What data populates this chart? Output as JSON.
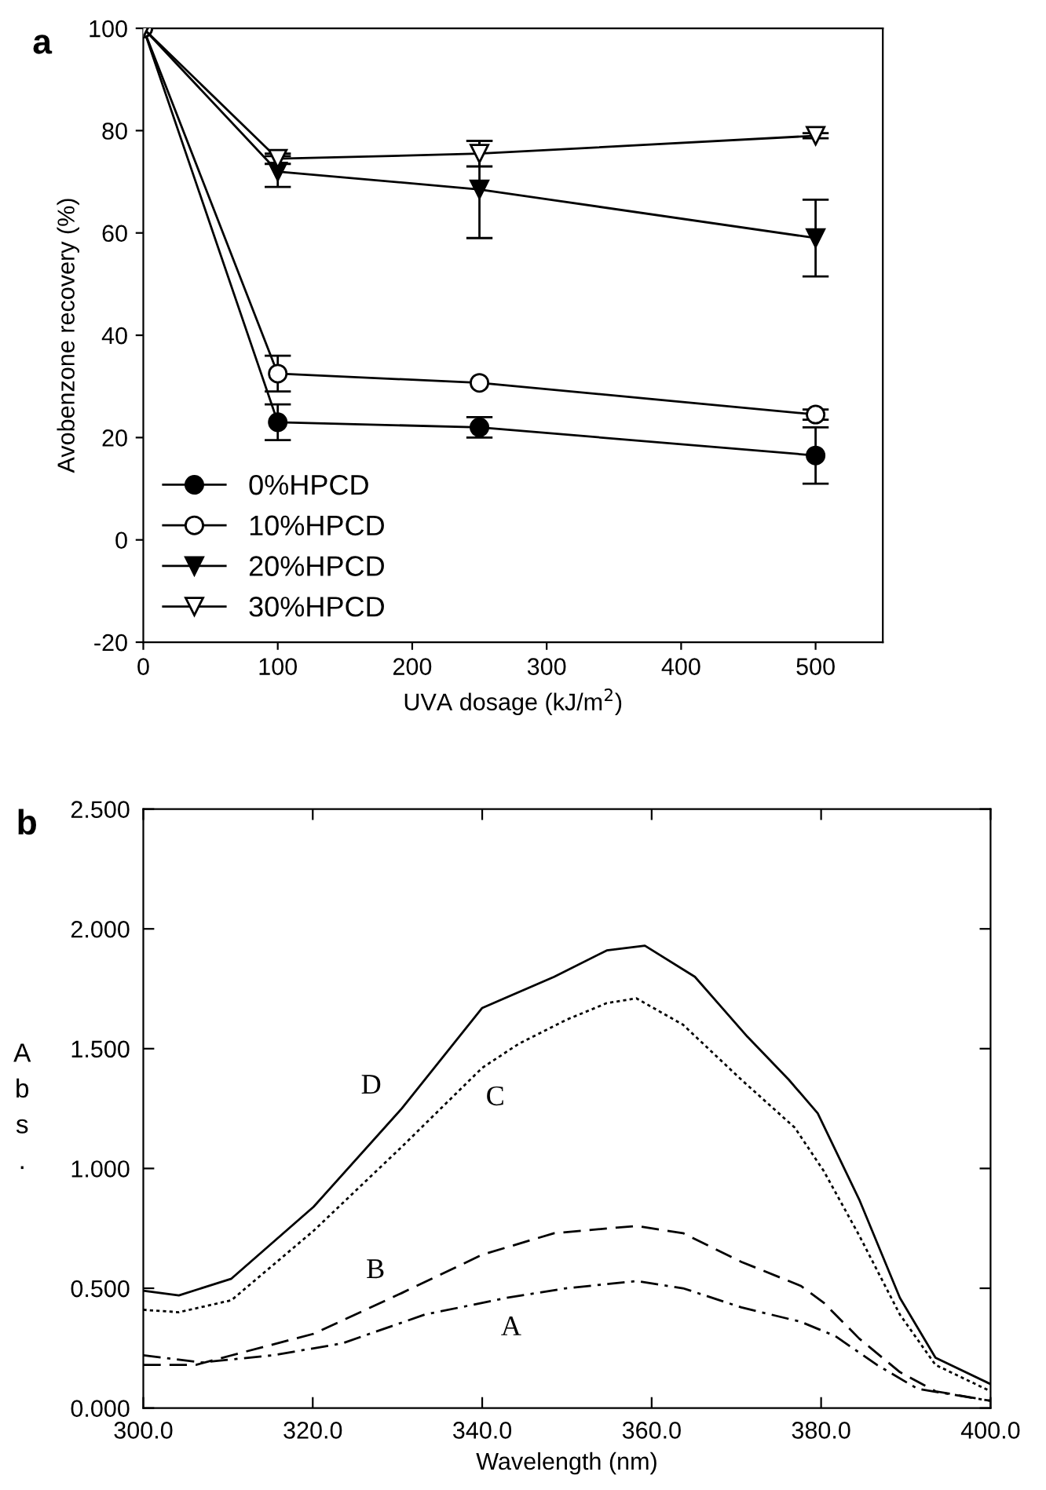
{
  "chart_data": [
    {
      "type": "line",
      "title": "a",
      "xlabel": "UVA dosage (kJ/m$^{2}$)",
      "ylabel": "Avobenzone recovery (%)",
      "x": [
        0,
        100,
        250,
        500
      ],
      "xlim": [
        0,
        550
      ],
      "ylim": [
        -20,
        100
      ],
      "xticks": [
        0,
        100,
        200,
        300,
        400,
        500
      ],
      "yticks": [
        -20,
        0,
        20,
        40,
        60,
        80,
        100
      ],
      "grid": false,
      "legend": "bottom left",
      "series": [
        {
          "name": "0%HPCD",
          "color": "#000000",
          "marker": "circle",
          "values": [
            100,
            23,
            22,
            16.5
          ],
          "errors": [
            null,
            3.5,
            2,
            5.5
          ]
        },
        {
          "name": "10%HPCD",
          "color": "#000000",
          "marker": "circle",
          "values": [
            100,
            32.5,
            30.7,
            24.5
          ],
          "errors": [
            null,
            3.5,
            null,
            1
          ]
        },
        {
          "name": "20%HPCD",
          "color": "#000000",
          "marker": "triangle",
          "values": [
            100,
            72,
            68.5,
            59
          ],
          "errors": [
            null,
            3,
            9.5,
            7.5
          ]
        },
        {
          "name": "30%HPCD",
          "color": "#000000",
          "marker": "triangle",
          "values": [
            100,
            74.5,
            75.5,
            79
          ],
          "errors": [
            null,
            1,
            2.5,
            0.5
          ]
        }
      ]
    },
    {
      "type": "line",
      "title": "b",
      "xlabel": "Wavelength (nm)",
      "ylabel": "A\nb\ns\n.",
      "xlim": [
        300,
        400
      ],
      "ylim": [
        0,
        2.5
      ],
      "xticks": [
        {
          "value": 300,
          "label": "300.0"
        },
        {
          "value": 320,
          "label": "320.0"
        },
        {
          "value": 340,
          "label": "340.0"
        },
        {
          "value": 360,
          "label": "360.0"
        },
        {
          "value": 380,
          "label": "380.0"
        },
        {
          "value": 400,
          "label": "400.0"
        }
      ],
      "yticks": [
        {
          "value": 0,
          "label": "0.000"
        },
        {
          "value": 0.5,
          "label": "0.500"
        },
        {
          "value": 1,
          "label": "1.000"
        },
        {
          "value": 1.5,
          "label": "1.500"
        },
        {
          "value": 2,
          "label": "2.000"
        },
        {
          "value": 2.5,
          "label": "2.500"
        }
      ],
      "grid": false,
      "legend": false,
      "annotations": [
        "D",
        "C",
        "B",
        "A"
      ],
      "series": [
        {
          "color": "#000000",
          "line_style": "solid",
          "x": [
            300,
            304.2,
            310.4,
            320.1,
            330.5,
            340,
            348.5,
            354.7,
            359.2,
            365.1,
            371.3,
            376.2,
            379.6,
            384.5,
            389.3,
            393.5,
            400
          ],
          "values": [
            0.49,
            0.47,
            0.54,
            0.84,
            1.25,
            1.67,
            1.8,
            1.91,
            1.93,
            1.8,
            1.55,
            1.37,
            1.23,
            0.87,
            0.46,
            0.21,
            0.1
          ]
        },
        {
          "color": "#000000",
          "line_style": "dotted",
          "x": [
            300,
            304.2,
            310.4,
            320.1,
            330.5,
            340,
            344.3,
            349.9,
            354.7,
            358.2,
            363.7,
            370.6,
            376.9,
            380.3,
            384.5,
            389.3,
            393.5,
            400
          ],
          "values": [
            0.41,
            0.4,
            0.45,
            0.74,
            1.09,
            1.42,
            1.52,
            1.62,
            1.69,
            1.71,
            1.6,
            1.37,
            1.17,
            0.99,
            0.72,
            0.39,
            0.18,
            0.07
          ]
        },
        {
          "color": "#000000",
          "line_style": "dashed",
          "x": [
            300,
            306.2,
            310.4,
            320.1,
            330.5,
            340,
            348.5,
            358.2,
            363.7,
            370.6,
            377.6,
            380.3,
            384.5,
            389.3,
            393.5,
            400
          ],
          "values": [
            0.18,
            0.18,
            0.22,
            0.31,
            0.48,
            0.64,
            0.73,
            0.76,
            0.73,
            0.61,
            0.51,
            0.44,
            0.29,
            0.15,
            0.07,
            0.03
          ]
        },
        {
          "color": "#000000",
          "line_style": "dashdot",
          "x": [
            300,
            306.9,
            315.2,
            323.5,
            333.2,
            342.9,
            349.9,
            358.2,
            363.7,
            370.6,
            377.6,
            381.7,
            386.6,
            391.4,
            400
          ],
          "values": [
            0.22,
            0.19,
            0.22,
            0.27,
            0.39,
            0.46,
            0.5,
            0.53,
            0.5,
            0.42,
            0.36,
            0.3,
            0.18,
            0.08,
            0.03
          ]
        }
      ]
    }
  ]
}
